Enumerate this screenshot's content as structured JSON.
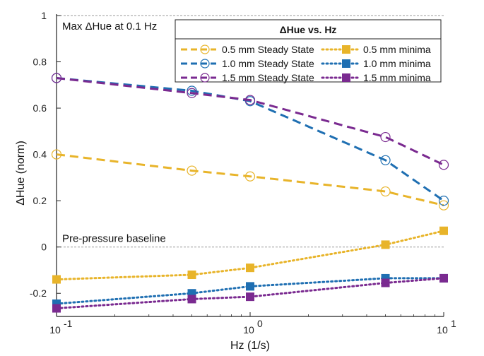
{
  "chart_data": {
    "type": "line",
    "x_scale": "log",
    "xlabel": "Hz (1/s)",
    "ylabel": "ΔHue (norm)",
    "xlim": [
      0.1,
      10
    ],
    "ylim": [
      -0.3,
      1.0
    ],
    "x_ticks": [
      {
        "value": 0.1,
        "base": "10",
        "exp": "-1"
      },
      {
        "value": 1,
        "base": "10",
        "exp": "0"
      },
      {
        "value": 10,
        "base": "10",
        "exp": "1"
      }
    ],
    "y_ticks": [
      {
        "value": 1,
        "label": "1"
      },
      {
        "value": 0.8,
        "label": "0.8"
      },
      {
        "value": 0.6,
        "label": "0.6"
      },
      {
        "value": 0.4,
        "label": "0.4"
      },
      {
        "value": 0.2,
        "label": "0.2"
      },
      {
        "value": 0,
        "label": "0"
      },
      {
        "value": -0.2,
        "label": "-0.2"
      }
    ],
    "reference_lines": [
      {
        "y": 1.0,
        "label": "Max ΔHue at 0.1 Hz"
      },
      {
        "y": 0.0,
        "label": "Pre-pressure baseline"
      }
    ],
    "legend_title": "ΔHue vs. Hz",
    "x": [
      0.1,
      0.5,
      1,
      5,
      10
    ],
    "series": [
      {
        "name": "0.5 mm Steady State",
        "color": "#e8b42a",
        "style": "dashed",
        "marker": "circle",
        "values": [
          0.4,
          0.33,
          0.305,
          0.24,
          0.18
        ]
      },
      {
        "name": "1.0 mm Steady State",
        "color": "#1f6fb2",
        "style": "dashed",
        "marker": "circle",
        "values": [
          0.73,
          0.675,
          0.63,
          0.375,
          0.2
        ]
      },
      {
        "name": "1.5 mm Steady State",
        "color": "#7a2a90",
        "style": "dashed",
        "marker": "circle",
        "values": [
          0.73,
          0.665,
          0.635,
          0.475,
          0.355
        ]
      },
      {
        "name": "0.5 mm minima",
        "color": "#e8b42a",
        "style": "dotted",
        "marker": "square",
        "values": [
          -0.14,
          -0.12,
          -0.09,
          0.01,
          0.07
        ]
      },
      {
        "name": "1.0 mm minima",
        "color": "#1f6fb2",
        "style": "dotted",
        "marker": "square",
        "values": [
          -0.245,
          -0.2,
          -0.17,
          -0.135,
          -0.135
        ]
      },
      {
        "name": "1.5 mm minima",
        "color": "#7a2a90",
        "style": "dotted",
        "marker": "square",
        "values": [
          -0.265,
          -0.225,
          -0.215,
          -0.155,
          -0.135
        ]
      }
    ],
    "legend_placement": "top-right"
  }
}
